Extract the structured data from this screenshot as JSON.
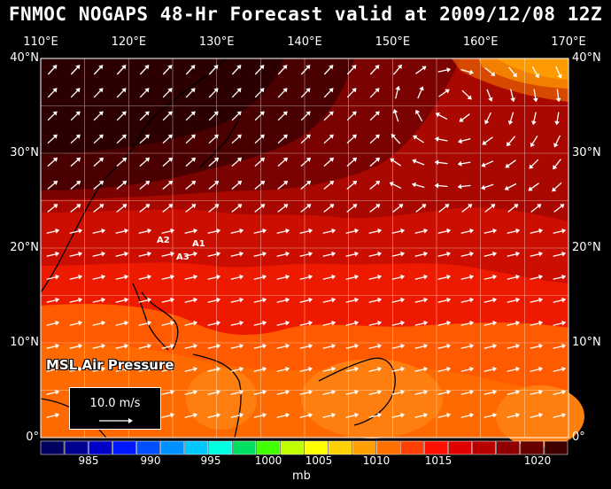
{
  "title": "FNMOC NOGAPS 48-Hr Forecast valid at 2009/12/08 12Z",
  "layer_label": "MSL Air Pressure",
  "reference_vector": {
    "label": "10.0 m/s"
  },
  "longitudes": [
    "110°E",
    "120°E",
    "130°E",
    "140°E",
    "150°E",
    "160°E",
    "170°E"
  ],
  "latitudes": [
    "40°N",
    "30°N",
    "20°N",
    "10°N",
    "0°"
  ],
  "markers": [
    "A1",
    "A2",
    "A3"
  ],
  "colorbar": {
    "unit": "mb",
    "labels": [
      "985",
      "990",
      "995",
      "1000",
      "1005",
      "1010",
      "1015",
      "1020"
    ],
    "colors": [
      "#000060",
      "#000090",
      "#0000c8",
      "#0018ff",
      "#0050ff",
      "#0090ff",
      "#00c8ff",
      "#00ffe0",
      "#00e060",
      "#40ff00",
      "#c0ff00",
      "#ffff00",
      "#ffd000",
      "#ffa000",
      "#ff7000",
      "#ff4000",
      "#ff1000",
      "#e00000",
      "#b80000",
      "#900000",
      "#680000",
      "#400000"
    ]
  }
}
